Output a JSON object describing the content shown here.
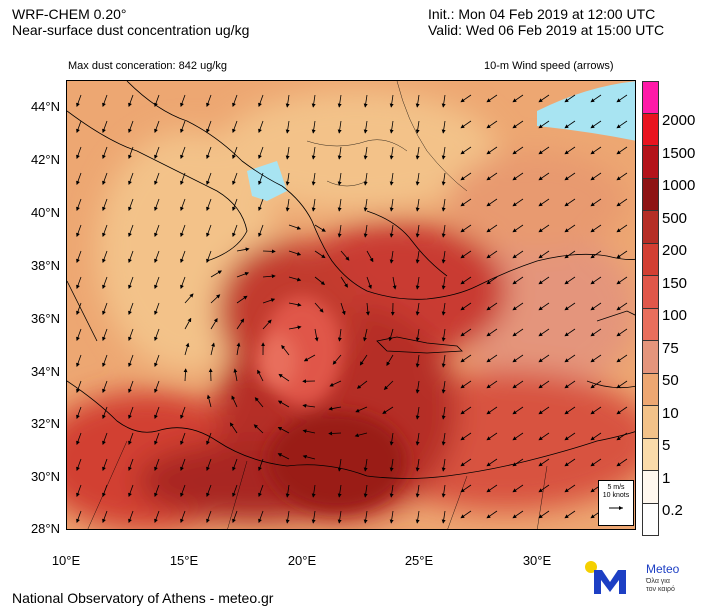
{
  "header": {
    "model": "WRF-CHEM 0.20°",
    "product": "Near-surface dust concentration ug/kg",
    "init": "Init.:  Mon 04 Feb 2019 at 12:00 UTC",
    "valid": "Valid: Wed 06 Feb 2019 at 15:00 UTC"
  },
  "annotations": {
    "max_dust": "Max dust conceration: 842 ug/kg",
    "wind_label": "10-m Wind speed (arrows)"
  },
  "reference_vector": {
    "line1": "5 m/s",
    "line2": "10 knots"
  },
  "axes": {
    "lat_labels": [
      "44°N",
      "42°N",
      "40°N",
      "38°N",
      "36°N",
      "34°N",
      "32°N",
      "30°N",
      "28°N"
    ],
    "lon_labels": [
      "10°E",
      "15°E",
      "20°E",
      "25°E",
      "30°E"
    ]
  },
  "colorbar": {
    "labels": [
      "2000",
      "1500",
      "1000",
      "500",
      "200",
      "150",
      "100",
      "75",
      "50",
      "10",
      "5",
      "1",
      "0.2"
    ],
    "colors": [
      "#ff1aa8",
      "#e8141f",
      "#b3131a",
      "#8e1414",
      "#b52e26",
      "#d23f33",
      "#e0574a",
      "#e86e5c",
      "#e4957c",
      "#eda772",
      "#f3c289",
      "#fadbaa",
      "#fff8ef",
      "#ffffff"
    ]
  },
  "footer": "National Observatory of Athens - meteo.gr",
  "logo": {
    "name": "Meteo",
    "tagline1": "Όλα για",
    "tagline2": "τον καιρό"
  }
}
